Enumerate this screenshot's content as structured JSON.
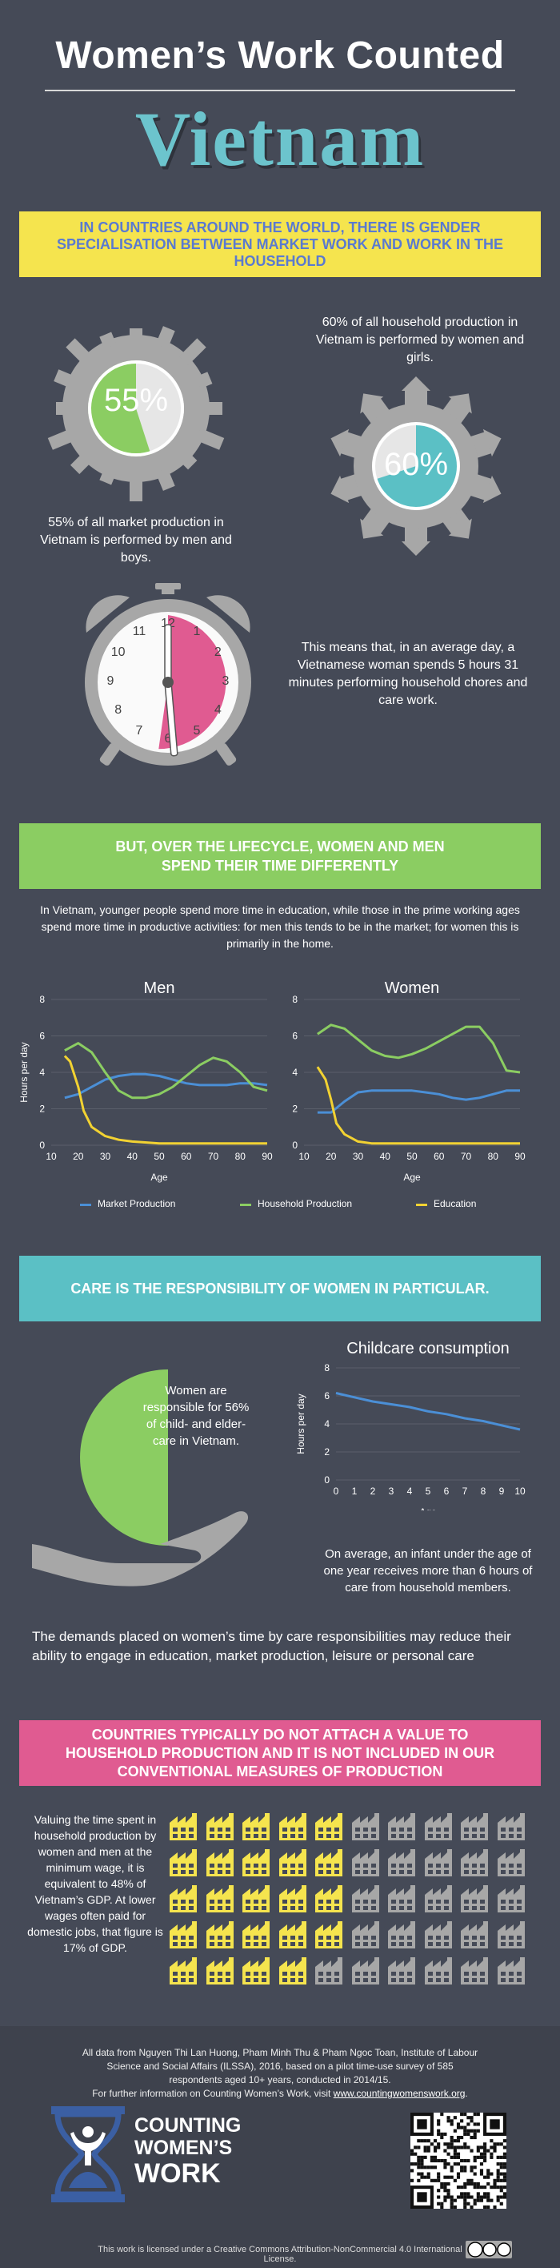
{
  "title": {
    "line1": "Women’s Work Counted",
    "line2": "Vietnam"
  },
  "section1": {
    "banner": "In countries around the world, there is gender specialisation between market work and work in the household",
    "market_pct": "55%",
    "market_text": "55% of all market production in Vietnam is performed by men and boys.",
    "household_pct": "60%",
    "household_text": "60% of all household production in Vietnam is performed by women and girls.",
    "clock_text": "This means that, in an average day, a Vietnamese woman spends 5 hours 31 minutes performing household chores and care work.",
    "clock_numbers": [
      "12",
      "1",
      "2",
      "3",
      "4",
      "5",
      "6",
      "7",
      "8",
      "9",
      "10",
      "11"
    ]
  },
  "section2": {
    "banner": "But, over the lifecycle, women and men spend their time differently",
    "intro": "In Vietnam, younger people spend more time in education, while those in the prime working ages spend more time in productive activities: for men this tends to be in the market; for women this is primarily in the home."
  },
  "chart_data": [
    {
      "type": "line",
      "title": "Men",
      "xlabel": "Age",
      "ylabel": "Hours per day",
      "xlim": [
        10,
        90
      ],
      "ylim": [
        0,
        8
      ],
      "xticks": [
        10,
        20,
        30,
        40,
        50,
        60,
        70,
        80,
        90
      ],
      "yticks": [
        0,
        2,
        4,
        6,
        8
      ],
      "series": [
        {
          "name": "Market Production",
          "color": "#4b8fd6",
          "x": [
            15,
            20,
            25,
            30,
            35,
            40,
            45,
            50,
            55,
            60,
            65,
            70,
            75,
            80,
            85,
            90
          ],
          "y": [
            2.6,
            2.8,
            3.2,
            3.6,
            3.8,
            3.9,
            3.9,
            3.8,
            3.6,
            3.4,
            3.3,
            3.3,
            3.3,
            3.4,
            3.4,
            3.3
          ]
        },
        {
          "name": "Household Production",
          "color": "#8bcd62",
          "x": [
            15,
            20,
            25,
            30,
            35,
            40,
            45,
            50,
            55,
            60,
            65,
            70,
            75,
            80,
            85,
            90
          ],
          "y": [
            5.2,
            5.6,
            5.1,
            4.0,
            3.0,
            2.6,
            2.6,
            2.8,
            3.2,
            3.8,
            4.4,
            4.8,
            4.6,
            4.0,
            3.2,
            3.0
          ]
        },
        {
          "name": "Education",
          "color": "#f2d232",
          "x": [
            15,
            17,
            20,
            22,
            25,
            30,
            35,
            40,
            50,
            60,
            70,
            80,
            90
          ],
          "y": [
            4.9,
            4.6,
            3.2,
            1.9,
            1.0,
            0.5,
            0.3,
            0.2,
            0.1,
            0.1,
            0.1,
            0.1,
            0.1
          ]
        }
      ]
    },
    {
      "type": "line",
      "title": "Women",
      "xlabel": "Age",
      "ylabel": "",
      "xlim": [
        10,
        90
      ],
      "ylim": [
        0,
        8
      ],
      "xticks": [
        10,
        20,
        30,
        40,
        50,
        60,
        70,
        80,
        90
      ],
      "yticks": [
        0,
        2,
        4,
        6,
        8
      ],
      "series": [
        {
          "name": "Market Production",
          "color": "#4b8fd6",
          "x": [
            15,
            20,
            25,
            30,
            35,
            40,
            45,
            50,
            55,
            60,
            65,
            70,
            75,
            80,
            85,
            90
          ],
          "y": [
            1.8,
            1.8,
            2.4,
            2.9,
            3.0,
            3.0,
            3.0,
            3.0,
            2.9,
            2.8,
            2.6,
            2.5,
            2.6,
            2.8,
            3.0,
            3.0
          ]
        },
        {
          "name": "Household Production",
          "color": "#8bcd62",
          "x": [
            15,
            20,
            25,
            30,
            35,
            40,
            45,
            50,
            55,
            60,
            65,
            70,
            75,
            80,
            85,
            90
          ],
          "y": [
            6.1,
            6.6,
            6.4,
            5.8,
            5.2,
            4.9,
            4.8,
            5.0,
            5.3,
            5.7,
            6.1,
            6.5,
            6.5,
            5.6,
            4.1,
            4.0
          ]
        },
        {
          "name": "Education",
          "color": "#f2d232",
          "x": [
            15,
            18,
            20,
            22,
            25,
            30,
            35,
            40,
            50,
            60,
            70,
            80,
            90
          ],
          "y": [
            4.3,
            3.6,
            2.5,
            1.2,
            0.6,
            0.2,
            0.1,
            0.1,
            0.1,
            0.1,
            0.1,
            0.1,
            0.1
          ]
        }
      ]
    },
    {
      "type": "line",
      "title": "Childcare consumption",
      "xlabel": "Age",
      "ylabel": "Hours per day",
      "xlim": [
        0,
        10
      ],
      "ylim": [
        0,
        8
      ],
      "xticks": [
        0,
        1,
        2,
        3,
        4,
        5,
        6,
        7,
        8,
        9,
        10
      ],
      "yticks": [
        0,
        2,
        4,
        6,
        8
      ],
      "series": [
        {
          "name": "Childcare",
          "color": "#4b8fd6",
          "x": [
            0,
            1,
            2,
            3,
            4,
            5,
            6,
            7,
            8,
            9,
            10
          ],
          "y": [
            6.2,
            5.9,
            5.6,
            5.4,
            5.2,
            4.9,
            4.7,
            4.4,
            4.2,
            3.9,
            3.6
          ]
        }
      ]
    }
  ],
  "legend": {
    "items": [
      {
        "label": "Market Production",
        "color": "#4b8fd6"
      },
      {
        "label": "Household Production",
        "color": "#8bcd62"
      },
      {
        "label": "Education",
        "color": "#f2d232"
      }
    ]
  },
  "section3": {
    "banner": "Care is the responsibility of women in particular.",
    "care_text": "Women are responsible for 56% of child- and elder-care in Vietnam.",
    "infant_text": "On average, an infant under the age of one year receives more than 6 hours of care from household members.",
    "demands_text": "The demands placed on women’s time by care responsibilities may reduce their ability to engage in education, market production, leisure or personal care"
  },
  "section4": {
    "banner": "Countries typically do not attach a value to household production and it is not included in our conventional measures of production",
    "gdp_text": "Valuing the time spent in household production by women and men at the minimum wage, it is equivalent to 48% of Vietnam’s GDP. At lower wages often paid for domestic jobs, that figure is 17% of GDP.",
    "icons_total": 50,
    "icons_yellow": 24
  },
  "footer": {
    "source": "All data from Nguyen Thi Lan Huong, Pham Minh Thu & Pham Ngoc Toan, Institute of Labour Science and Social Affairs (ILSSA), 2016, based on a pilot time-use survey of 585 respondents aged 10+ years, conducted in 2014/15.",
    "more_prefix": "For further information on Counting Women’s Work, visit ",
    "more_link": "www.countingwomenswork.org",
    "more_suffix": ".",
    "logo_line1": "COUNTING",
    "logo_line2": "WOMEN’S",
    "logo_line3": "WORK",
    "license": "This work is licensed under a Creative Commons Attribution-NonCommercial 4.0 International License."
  },
  "colors": {
    "background": "#454a57",
    "yellow": "#f5e44e",
    "green": "#8bcd62",
    "teal": "#5bc0c5",
    "pink": "#e05b91",
    "blue": "#4b8fd6",
    "grey": "#a7a7a7",
    "logo_blue": "#3b5fa3"
  }
}
